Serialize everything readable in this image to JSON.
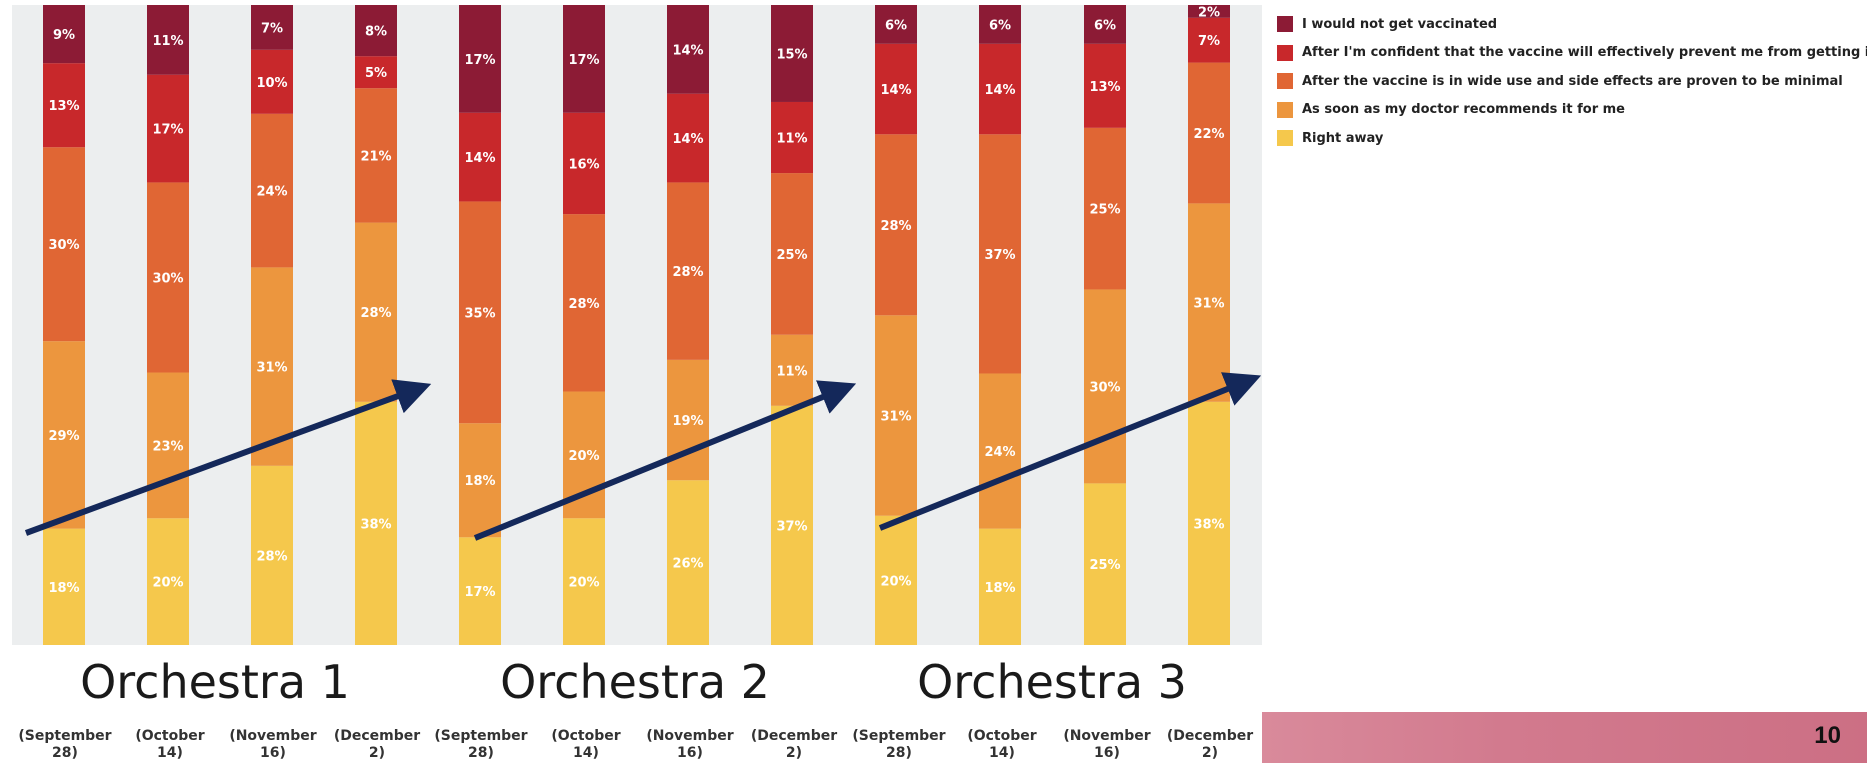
{
  "chart_data": {
    "type": "bar",
    "stacked": true,
    "categories": [
      "(September 28)",
      "(October 14)",
      "(November 16)",
      "(December 2)",
      "(September 28)",
      "(October 14)",
      "(November 16)",
      "(December 2)",
      "(September 28)",
      "(October 14)",
      "(November 16)",
      "(December 2)"
    ],
    "groups": [
      "Orchestra 1",
      "Orchestra 2",
      "Orchestra 3"
    ],
    "series": [
      {
        "name": "Right away",
        "color": "#f5c84c",
        "values": [
          18,
          20,
          28,
          38,
          17,
          20,
          26,
          37,
          20,
          18,
          25,
          38
        ]
      },
      {
        "name": "As soon as my doctor recommends it for me",
        "color": "#ec963e",
        "values": [
          29,
          23,
          31,
          28,
          18,
          20,
          19,
          11,
          31,
          24,
          30,
          31
        ]
      },
      {
        "name": "After the vaccine is in wide use and side effects are proven to be minimal",
        "color": "#e06634",
        "values": [
          30,
          30,
          24,
          21,
          35,
          28,
          28,
          25,
          28,
          37,
          25,
          22
        ]
      },
      {
        "name": "After I'm confident that the vaccine will effectively prevent me from getting infected",
        "color": "#c8282b",
        "values": [
          13,
          17,
          10,
          5,
          14,
          16,
          14,
          11,
          14,
          14,
          13,
          7
        ]
      },
      {
        "name": "I would not get vaccinated",
        "color": "#8c1b35",
        "values": [
          9,
          11,
          7,
          8,
          17,
          17,
          14,
          15,
          6,
          6,
          6,
          2
        ]
      }
    ],
    "arrows": [
      "Orchestra 1",
      "Orchestra 2",
      "Orchestra 3"
    ],
    "arrow_color": "#14285a",
    "plot_background": "#eceeef"
  },
  "legend_items": [
    {
      "label": "I would not get vaccinated",
      "color": "#8c1b35"
    },
    {
      "label": "After I'm confident that the vaccine will effectively prevent me from getting infected",
      "color": "#c8282b"
    },
    {
      "label": "After the vaccine is in wide use and side effects are proven to be minimal",
      "color": "#e06634"
    },
    {
      "label": "As soon as my doctor recommends it for me",
      "color": "#ec963e"
    },
    {
      "label": "Right away",
      "color": "#f5c84c"
    }
  ],
  "groups": [
    "Orchestra 1",
    "Orchestra 2",
    "Orchestra 3"
  ],
  "dates": [
    "(September\n28)",
    "(October\n14)",
    "(November\n16)",
    "(December\n2)",
    "(September\n28)",
    "(October\n14)",
    "(November\n16)",
    "(December\n2)",
    "(September\n28)",
    "(October\n14)",
    "(November\n16)",
    "(December\n2)"
  ],
  "page_number": "10"
}
